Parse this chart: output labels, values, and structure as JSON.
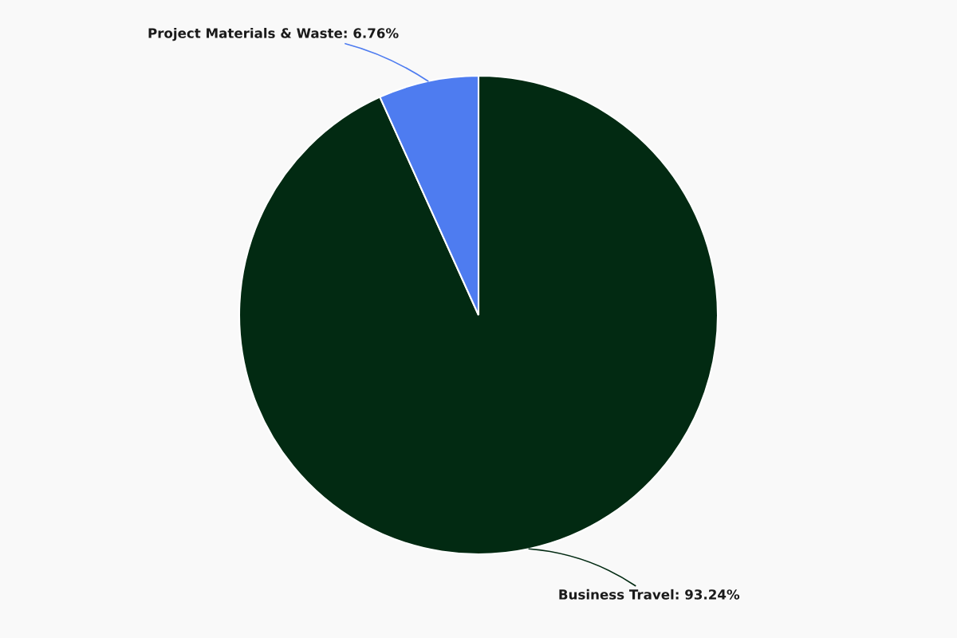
{
  "chart_data": {
    "type": "pie",
    "categories": [
      "Business Travel",
      "Project Materials & Waste"
    ],
    "values": [
      93.24,
      6.76
    ],
    "value_labels": [
      "93.24%",
      "6.76%"
    ],
    "colors": [
      "#022a12",
      "#4e7cf0"
    ]
  }
}
